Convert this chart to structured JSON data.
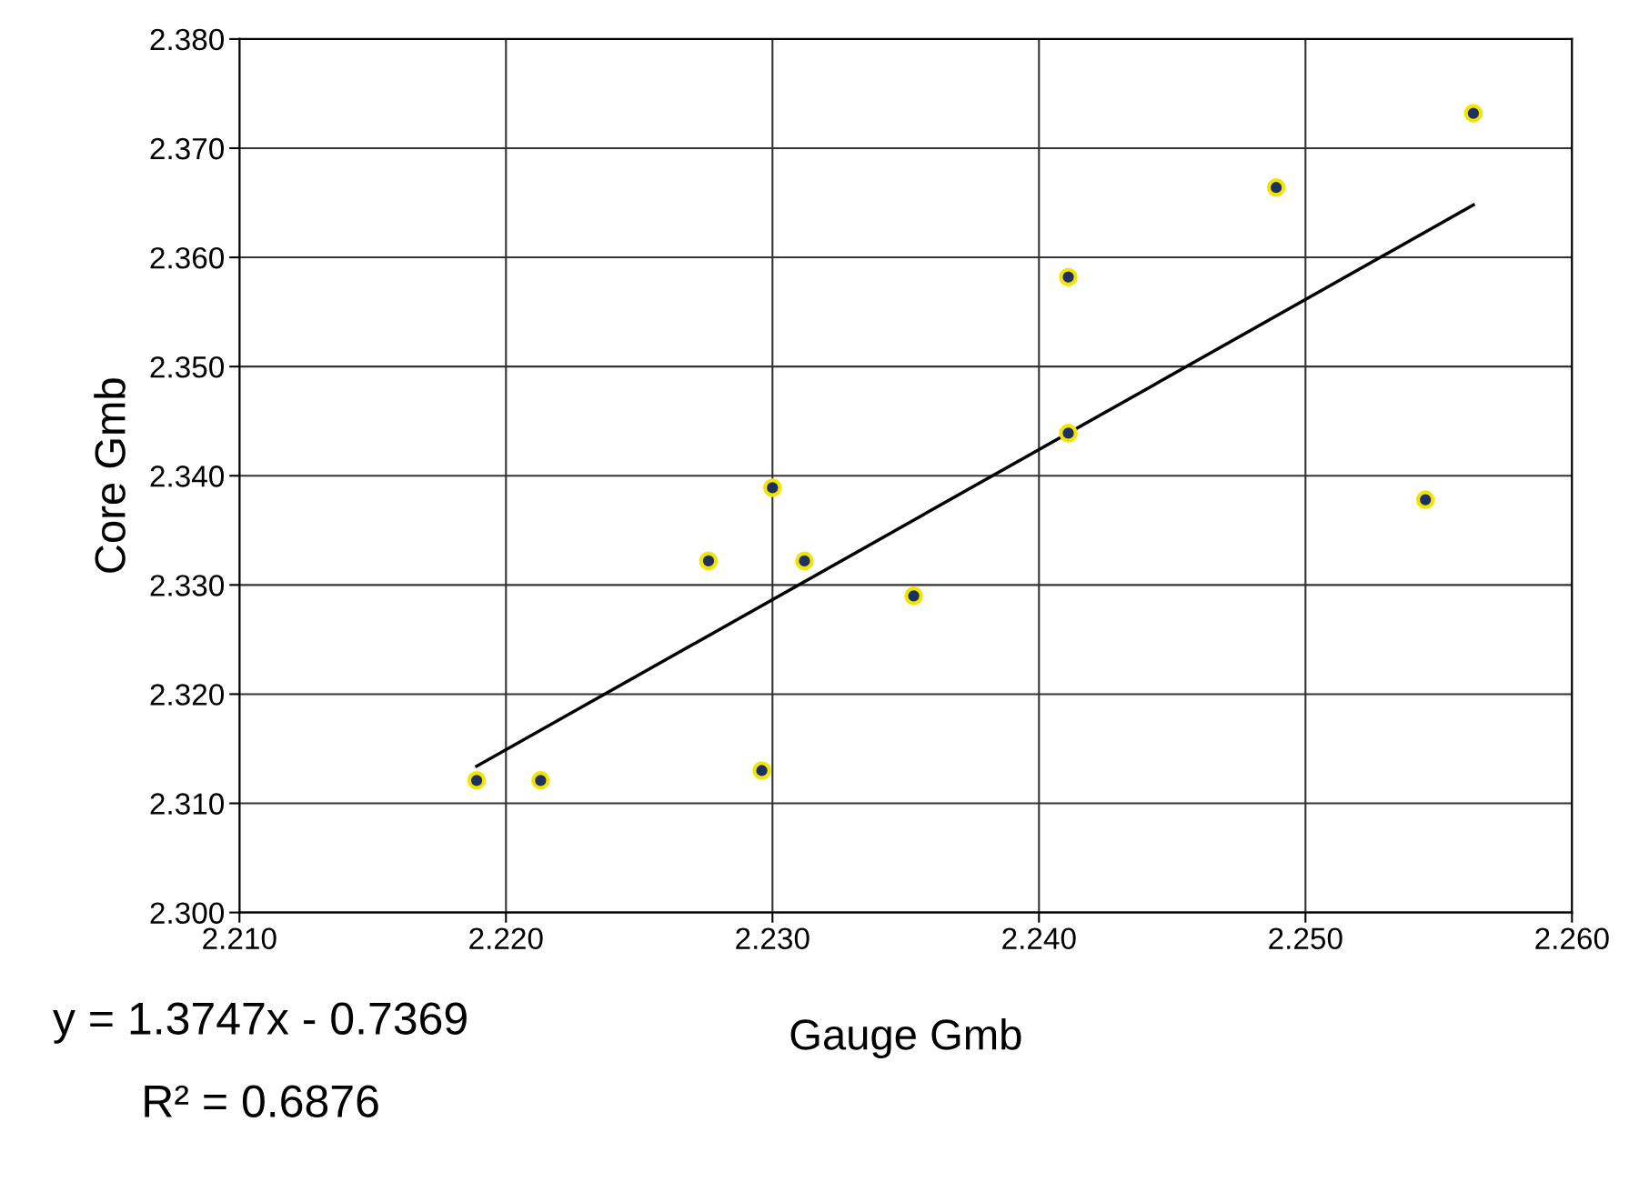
{
  "chart_data": {
    "type": "scatter",
    "xlabel": "Gauge Gmb",
    "ylabel": "Core Gmb",
    "annotations": [
      "y = 1.3747x - 0.7369",
      "R² = 0.6876"
    ],
    "series": [
      {
        "color": "#1f2f5f",
        "marker": "circle",
        "x": [
          2.2189,
          2.2213,
          2.2276,
          2.23,
          2.2296,
          2.2312,
          2.2353,
          2.2411,
          2.2411,
          2.2489,
          2.2545,
          2.2563
        ],
        "values": [
          2.3121,
          2.3121,
          2.3322,
          2.3389,
          2.313,
          2.3322,
          2.329,
          2.3582,
          2.3439,
          2.3664,
          2.3378,
          2.3732
        ]
      },
      {
        "type": "line",
        "color": "#000000",
        "line_style": "solid",
        "x": [
          2.2189,
          2.2563
        ],
        "values": [
          2.3134,
          2.3648
        ]
      }
    ],
    "xlim": [
      2.21,
      2.26
    ],
    "ylim": [
      2.3,
      2.38
    ],
    "xticks": [
      {
        "value": 2.21,
        "label": "2.210"
      },
      {
        "value": 2.22,
        "label": "2.220"
      },
      {
        "value": 2.23,
        "label": "2.230"
      },
      {
        "value": 2.24,
        "label": "2.240"
      },
      {
        "value": 2.25,
        "label": "2.250"
      },
      {
        "value": 2.26,
        "label": "2.260"
      }
    ],
    "yticks": [
      {
        "value": 2.3,
        "label": "2.300"
      },
      {
        "value": 2.31,
        "label": "2.310"
      },
      {
        "value": 2.32,
        "label": "2.320"
      },
      {
        "value": 2.33,
        "label": "2.330"
      },
      {
        "value": 2.34,
        "label": "2.340"
      },
      {
        "value": 2.35,
        "label": "2.350"
      },
      {
        "value": 2.36,
        "label": "2.360"
      },
      {
        "value": 2.37,
        "label": "2.370"
      },
      {
        "value": 2.38,
        "label": "2.380"
      }
    ],
    "grid": true,
    "legend": false
  }
}
